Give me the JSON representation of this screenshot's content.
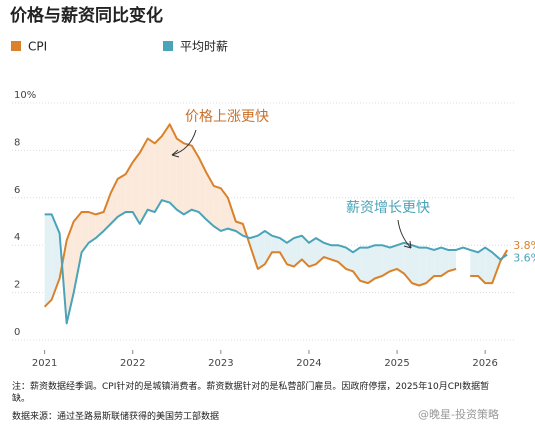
{
  "chart_data": {
    "type": "line",
    "title": "价格与薪资同比变化",
    "x": [
      2021.0,
      2021.08,
      2021.17,
      2021.25,
      2021.33,
      2021.42,
      2021.5,
      2021.58,
      2021.67,
      2021.75,
      2021.83,
      2021.92,
      2022.0,
      2022.08,
      2022.17,
      2022.25,
      2022.33,
      2022.42,
      2022.5,
      2022.58,
      2022.67,
      2022.75,
      2022.83,
      2022.92,
      2023.0,
      2023.08,
      2023.17,
      2023.25,
      2023.33,
      2023.42,
      2023.5,
      2023.58,
      2023.67,
      2023.75,
      2023.83,
      2023.92,
      2024.0,
      2024.08,
      2024.17,
      2024.25,
      2024.33,
      2024.42,
      2024.5,
      2024.58,
      2024.67,
      2024.75,
      2024.83,
      2024.92,
      2025.0,
      2025.08,
      2025.17,
      2025.25,
      2025.33,
      2025.42,
      2025.5,
      2025.58,
      2025.67,
      2025.75,
      2025.83,
      2025.92,
      2026.0,
      2026.08,
      2026.17,
      2026.25
    ],
    "series": [
      {
        "name": "CPI",
        "color": "#d9822b",
        "values": [
          1.4,
          1.7,
          2.6,
          4.2,
          5.0,
          5.4,
          5.4,
          5.3,
          5.4,
          6.2,
          6.8,
          7.0,
          7.5,
          7.9,
          8.5,
          8.3,
          8.6,
          9.1,
          8.5,
          8.3,
          8.2,
          7.7,
          7.1,
          6.5,
          6.4,
          6.0,
          5.0,
          4.9,
          4.0,
          3.0,
          3.2,
          3.7,
          3.7,
          3.2,
          3.1,
          3.4,
          3.1,
          3.2,
          3.5,
          3.4,
          3.3,
          3.0,
          2.9,
          2.5,
          2.4,
          2.6,
          2.7,
          2.9,
          3.0,
          2.8,
          2.4,
          2.3,
          2.4,
          2.7,
          2.7,
          2.9,
          3.0,
          null,
          2.7,
          2.7,
          2.4,
          2.4,
          3.3,
          3.8
        ],
        "value_labels": [
          null,
          null,
          null,
          null,
          null,
          null,
          null,
          null,
          null,
          null,
          null,
          null,
          null,
          null,
          null,
          null,
          null,
          null,
          null,
          null,
          null,
          null,
          null,
          null,
          null,
          null,
          null,
          null,
          null,
          null,
          null,
          null,
          null,
          null,
          null,
          null,
          null,
          null,
          null,
          null,
          null,
          null,
          null,
          null,
          null,
          null,
          null,
          null,
          null,
          null,
          null,
          null,
          null,
          null,
          null,
          null,
          null,
          null,
          null,
          null,
          null,
          null,
          null,
          "3.8%"
        ]
      },
      {
        "name": "平均时薪",
        "color": "#4aa3b8",
        "values": [
          5.3,
          5.3,
          4.5,
          0.7,
          2.0,
          3.7,
          4.1,
          4.3,
          4.6,
          4.9,
          5.2,
          5.4,
          5.4,
          4.9,
          5.5,
          5.4,
          5.9,
          5.8,
          5.5,
          5.3,
          5.5,
          5.4,
          5.1,
          4.8,
          4.6,
          4.7,
          4.6,
          4.4,
          4.3,
          4.4,
          4.6,
          4.4,
          4.3,
          4.1,
          4.3,
          4.4,
          4.1,
          4.3,
          4.1,
          4.0,
          4.0,
          3.9,
          3.7,
          3.9,
          3.9,
          4.0,
          4.0,
          3.9,
          4.0,
          4.1,
          4.0,
          3.9,
          3.9,
          3.8,
          3.9,
          3.8,
          3.8,
          3.9,
          3.8,
          3.7,
          3.9,
          3.7,
          3.4,
          3.6
        ],
        "value_labels": [
          null,
          null,
          null,
          null,
          null,
          null,
          null,
          null,
          null,
          null,
          null,
          null,
          null,
          null,
          null,
          null,
          null,
          null,
          null,
          null,
          null,
          null,
          null,
          null,
          null,
          null,
          null,
          null,
          null,
          null,
          null,
          null,
          null,
          null,
          null,
          null,
          null,
          null,
          null,
          null,
          null,
          null,
          null,
          null,
          null,
          null,
          null,
          null,
          null,
          null,
          null,
          null,
          null,
          null,
          null,
          null,
          null,
          null,
          null,
          null,
          null,
          null,
          null,
          "3.6%"
        ]
      }
    ],
    "xlim": [
      2020.8,
      2026.35
    ],
    "xticks": [
      2021,
      2022,
      2023,
      2024,
      2025,
      2026
    ],
    "ylim": [
      0,
      10
    ],
    "yticks": [
      0,
      2,
      4,
      6,
      8,
      {
        "value": 10,
        "label": "10%"
      }
    ],
    "grid": true,
    "annotations": [
      "价格上涨更快",
      "薪资增长更快"
    ],
    "note": "注：薪资数据经季调。CPI针对的是城镇消费者。薪资数据针对的是私营部门雇员。因政府停摆，2025年10月CPI数据暂缺。",
    "source": "数据来源：通过圣路易斯联储获得的美国劳工部数据",
    "watermark": "@晚星-投资策略"
  }
}
